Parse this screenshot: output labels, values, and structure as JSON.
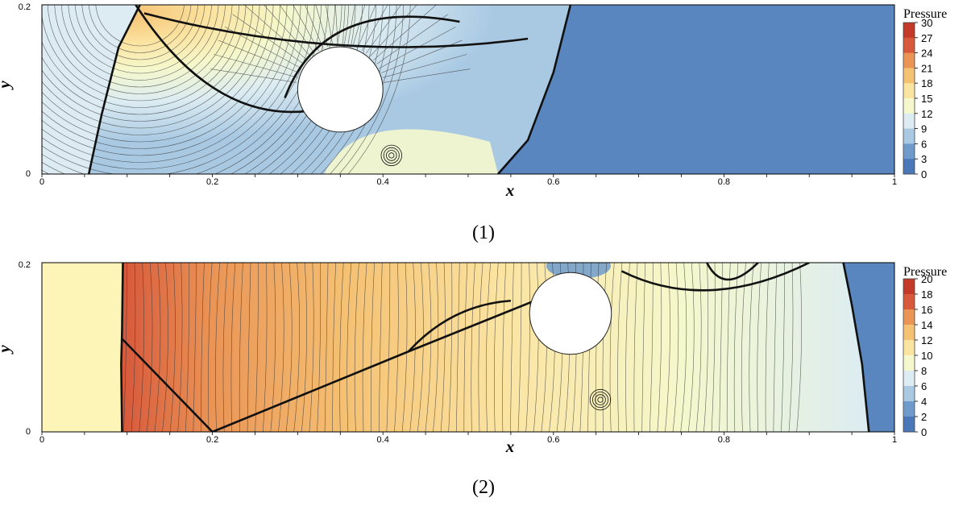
{
  "colors": {
    "scale": [
      "#4a77b8",
      "#6f9bcc",
      "#a9c9e3",
      "#dcecf2",
      "#f5f8cc",
      "#fbe3a0",
      "#f5c173",
      "#ea9456",
      "#d7583b",
      "#c33a28"
    ],
    "ambient_low": "#5a86c0",
    "ambient_pale": "#dcecf2",
    "contour": "#333333"
  },
  "chart_data": [
    {
      "type": "heatmap",
      "caption": "(1)",
      "xlabel": "x",
      "ylabel": "y",
      "xlim": [
        0,
        1
      ],
      "ylim": [
        0,
        0.2
      ],
      "x_ticks": [
        "0",
        "0.2",
        "0.4",
        "0.6",
        "0.8",
        "1"
      ],
      "y_ticks": [
        "0",
        "0.2"
      ],
      "colorbar": {
        "title": "Pressure",
        "range": [
          0,
          30
        ],
        "ticks": [
          "30",
          "27",
          "24",
          "21",
          "18",
          "15",
          "12",
          "9",
          "6",
          "3",
          "0"
        ]
      },
      "cylinder": {
        "x": 0.35,
        "y": 0.1,
        "r": 0.05
      },
      "bow_shock": [
        [
          0.055,
          0.0
        ],
        [
          0.07,
          0.07
        ],
        [
          0.09,
          0.15
        ],
        [
          0.115,
          0.2
        ]
      ],
      "main_shock": [
        [
          0.535,
          0.0
        ],
        [
          0.57,
          0.04
        ],
        [
          0.6,
          0.12
        ],
        [
          0.62,
          0.2
        ]
      ],
      "vortex": {
        "x": 0.41,
        "y": 0.022
      }
    },
    {
      "type": "heatmap",
      "caption": "(2)",
      "xlabel": "x",
      "ylabel": "y",
      "xlim": [
        0,
        1
      ],
      "ylim": [
        0,
        0.2
      ],
      "x_ticks": [
        "0",
        "0.2",
        "0.4",
        "0.6",
        "0.8",
        "1"
      ],
      "y_ticks": [
        "0",
        "0.2"
      ],
      "colorbar": {
        "title": "Pressure",
        "range": [
          0,
          20
        ],
        "ticks": [
          "20",
          "18",
          "16",
          "14",
          "12",
          "10",
          "8",
          "6",
          "4",
          "2",
          "0"
        ]
      },
      "cylinder": {
        "x": 0.62,
        "y": 0.14,
        "r": 0.048
      },
      "bow_shock": [
        [
          0.094,
          0.0
        ],
        [
          0.093,
          0.08
        ],
        [
          0.094,
          0.12
        ],
        [
          0.095,
          0.2
        ]
      ],
      "main_shock": [
        [
          0.97,
          0.0
        ],
        [
          0.962,
          0.08
        ],
        [
          0.95,
          0.15
        ],
        [
          0.94,
          0.2
        ]
      ],
      "vortex": {
        "x": 0.655,
        "y": 0.038
      }
    }
  ]
}
